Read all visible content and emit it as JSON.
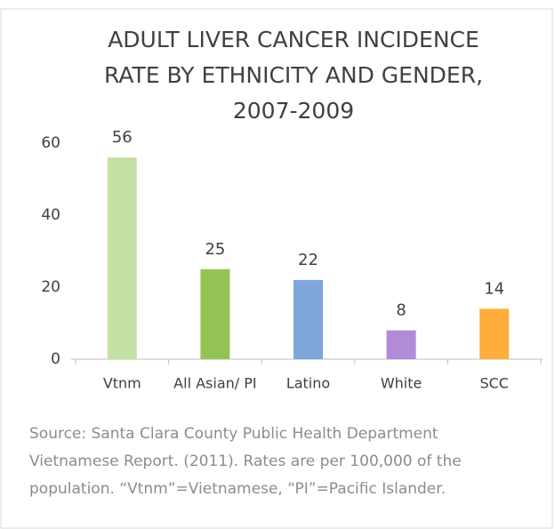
{
  "chart_data": {
    "type": "bar",
    "title": [
      "ADULT LIVER CANCER INCIDENCE",
      "RATE BY ETHNICITY AND GENDER,",
      "2007-2009"
    ],
    "categories": [
      "Vtnm",
      "All Asian/ PI",
      "Latino",
      "White",
      "SCC"
    ],
    "values": [
      56,
      25,
      22,
      8,
      14
    ],
    "colors": [
      "#c5e0a5",
      "#92c353",
      "#7fa6dc",
      "#b18bd8",
      "#fdae3b"
    ],
    "ylim": [
      0,
      60
    ],
    "yticks": [
      0,
      20,
      40,
      60
    ],
    "grid": false,
    "note": [
      "Source: Santa Clara County Public Health Department",
      "Vietnamese Report. (2011). Rates are per 100,000 of the",
      "population. “Vtnm”=Vietnamese, “PI”=Pacific Islander."
    ]
  }
}
